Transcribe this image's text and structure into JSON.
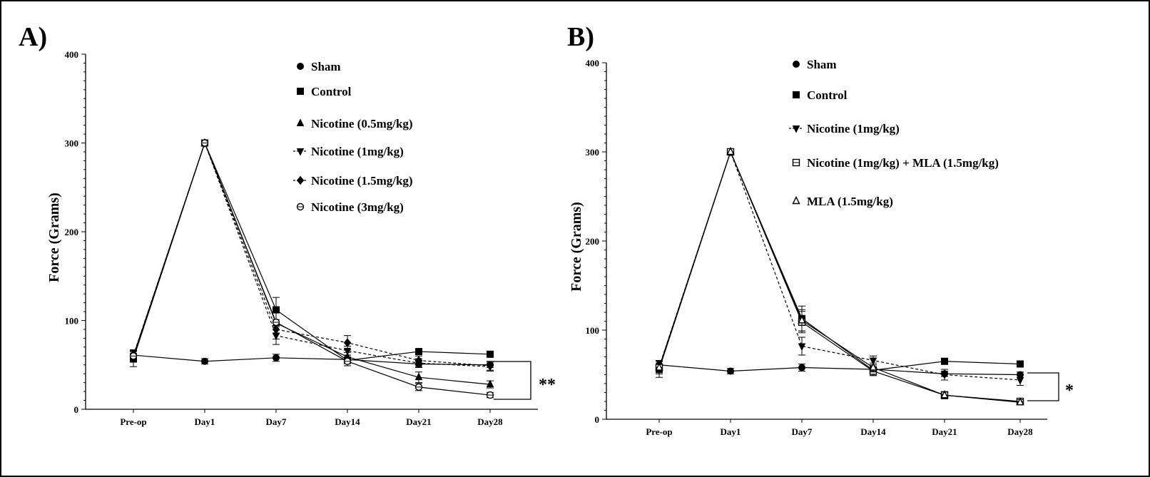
{
  "figure": {
    "axis_color": "#000000"
  },
  "chart_data": [
    {
      "type": "line",
      "panel_label": "A)",
      "ylabel": "Force (Grams)",
      "xlabel": "",
      "ylim": [
        0,
        400
      ],
      "yticks": [
        0,
        100,
        200,
        300,
        400
      ],
      "categories": [
        "Pre-op",
        "Day1",
        "Day7",
        "Day14",
        "Day21",
        "Day28"
      ],
      "legend_position": "top-right",
      "significance": "**",
      "series": [
        {
          "name": "Sham",
          "marker": "circle",
          "dash": false,
          "values": [
            61,
            54,
            58,
            56,
            51,
            50
          ],
          "errors": [
            4,
            3,
            4,
            3,
            3,
            3
          ]
        },
        {
          "name": "Control",
          "marker": "square",
          "dash": false,
          "values": [
            57,
            300,
            112,
            55,
            65,
            62
          ],
          "errors": [
            9,
            0,
            14,
            6,
            3,
            3
          ]
        },
        {
          "name": "Nicotine (0.5mg/kg)",
          "marker": "triangle-up",
          "dash": false,
          "values": [
            60,
            300,
            97,
            59,
            36,
            28
          ],
          "errors": [
            6,
            0,
            12,
            5,
            6,
            4
          ]
        },
        {
          "name": "Nicotine (1mg/kg)",
          "marker": "triangle-down",
          "dash": true,
          "values": [
            60,
            300,
            83,
            66,
            52,
            48
          ],
          "errors": [
            6,
            0,
            10,
            5,
            5,
            5
          ]
        },
        {
          "name": "Nicotine (1.5mg/kg)",
          "marker": "diamond",
          "dash": true,
          "values": [
            61,
            300,
            90,
            75,
            55,
            49
          ],
          "errors": [
            6,
            0,
            11,
            8,
            5,
            5
          ]
        },
        {
          "name": "Nicotine (3mg/kg)",
          "marker": "circle-open",
          "dash": false,
          "values": [
            60,
            300,
            98,
            54,
            25,
            16
          ],
          "errors": [
            7,
            0,
            12,
            5,
            4,
            3
          ]
        }
      ]
    },
    {
      "type": "line",
      "panel_label": "B)",
      "ylabel": "Force (Grams)",
      "xlabel": "",
      "ylim": [
        0,
        400
      ],
      "yticks": [
        0,
        100,
        200,
        300,
        400
      ],
      "categories": [
        "Pre-op",
        "Day1",
        "Day7",
        "Day14",
        "Day21",
        "Day28"
      ],
      "legend_position": "top-right",
      "significance": "*",
      "series": [
        {
          "name": "Sham",
          "marker": "circle",
          "dash": false,
          "values": [
            61,
            54,
            58,
            56,
            51,
            50
          ],
          "errors": [
            5,
            3,
            4,
            3,
            3,
            3
          ]
        },
        {
          "name": "Control",
          "marker": "square",
          "dash": false,
          "values": [
            56,
            300,
            113,
            55,
            65,
            62
          ],
          "errors": [
            9,
            0,
            14,
            6,
            3,
            3
          ]
        },
        {
          "name": "Nicotine (1mg/kg)",
          "marker": "triangle-down",
          "dash": true,
          "values": [
            59,
            300,
            82,
            66,
            50,
            44
          ],
          "errors": [
            6,
            0,
            10,
            5,
            6,
            6
          ]
        },
        {
          "name": "Nicotine (1mg/kg) + MLA (1.5mg/kg)",
          "marker": "square-open",
          "dash": false,
          "values": [
            58,
            300,
            109,
            54,
            27,
            20
          ],
          "errors": [
            7,
            0,
            12,
            5,
            4,
            3
          ]
        },
        {
          "name": "MLA (1.5mg/kg)",
          "marker": "triangle-open",
          "dash": false,
          "values": [
            58,
            300,
            111,
            58,
            27,
            19
          ],
          "errors": [
            7,
            0,
            12,
            5,
            4,
            3
          ]
        }
      ]
    }
  ]
}
